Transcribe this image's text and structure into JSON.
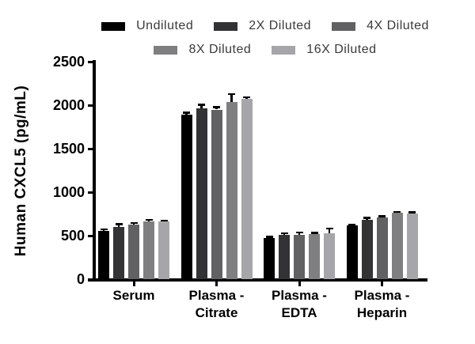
{
  "chart_data": {
    "type": "bar",
    "title": "",
    "ylabel": "Human CXCL5 (pg/mL)",
    "xlabel": "",
    "ylim": [
      0,
      2500
    ],
    "yticks": [
      0,
      500,
      1000,
      1500,
      2000,
      2500
    ],
    "grid": false,
    "legend_position": "top",
    "legend_rows": [
      [
        0,
        1,
        2
      ],
      [
        3,
        4
      ]
    ],
    "categories": [
      "Serum",
      "Plasma - Citrate",
      "Plasma - EDTA",
      "Plasma - Heparin"
    ],
    "category_label_lines": [
      [
        "Serum"
      ],
      [
        "Plasma -",
        "Citrate"
      ],
      [
        "Plasma -",
        "EDTA"
      ],
      [
        "Plasma -",
        "Heparin"
      ]
    ],
    "series": [
      {
        "name": "Undiluted",
        "color": "#000000",
        "values": [
          555,
          1890,
          475,
          615
        ],
        "errors": [
          20,
          25,
          15,
          15
        ]
      },
      {
        "name": "2X Diluted",
        "color": "#333335",
        "values": [
          600,
          1960,
          510,
          685
        ],
        "errors": [
          35,
          45,
          20,
          20
        ]
      },
      {
        "name": "4X Diluted",
        "color": "#616163",
        "values": [
          630,
          1950,
          510,
          710
        ],
        "errors": [
          20,
          30,
          30,
          15
        ]
      },
      {
        "name": "8X Diluted",
        "color": "#7f7f81",
        "values": [
          660,
          2040,
          520,
          760
        ],
        "errors": [
          25,
          90,
          15,
          15
        ]
      },
      {
        "name": "16X Diluted",
        "color": "#a6a6aa",
        "values": [
          660,
          2070,
          525,
          755
        ],
        "errors": [
          15,
          25,
          60,
          15
        ]
      }
    ]
  }
}
